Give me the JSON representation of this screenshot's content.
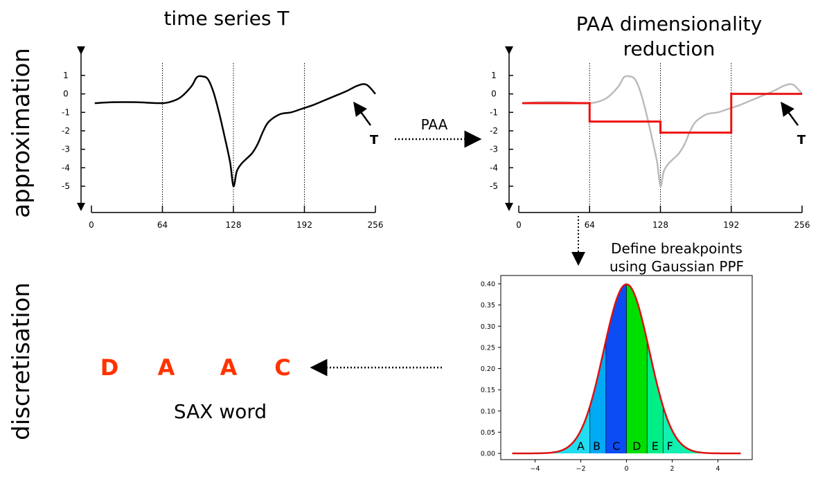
{
  "row_labels": {
    "approximation": "approximation",
    "discretisation": "discretisation"
  },
  "titles": {
    "left": "time series T",
    "right_line1": "PAA dimensionality",
    "right_line2": "reduction",
    "breakpoints_line1": "Define breakpoints",
    "breakpoints_line2": "using Gaussian PPF",
    "sax_word": "SAX word"
  },
  "arrow_labels": {
    "paa": "PAA"
  },
  "series_label": "T",
  "sax_letters": [
    "D",
    "A",
    "A",
    "C"
  ],
  "colors": {
    "series": "#000000",
    "faded_series": "#bbbbbb",
    "paa": "#ee1111",
    "sax": "#ff3300",
    "bin_A": "#22dcf0",
    "bin_B": "#00aaf5",
    "bin_C": "#0b4cf5",
    "bin_D": "#00e000",
    "bin_E": "#00ee88",
    "bin_F": "#11f0b0",
    "curve": "#dd1111"
  },
  "chart_data": [
    {
      "type": "line",
      "title": "time series T",
      "xticks": [
        "0",
        "64",
        "128",
        "192",
        "256"
      ],
      "yticks": [
        "1",
        "0",
        "-1",
        "-2",
        "-3",
        "-4",
        "-5"
      ],
      "xlim": [
        0,
        256
      ],
      "ylim": [
        -5,
        1
      ],
      "segment_boundaries": [
        64,
        128,
        192
      ],
      "series": [
        {
          "name": "T",
          "x": [
            3,
            20,
            40,
            60,
            70,
            80,
            90,
            95,
            100,
            105,
            110,
            115,
            120,
            125,
            128,
            131,
            135,
            140,
            145,
            150,
            155,
            160,
            170,
            180,
            190,
            200,
            210,
            220,
            230,
            240,
            248,
            256
          ],
          "y": [
            -0.5,
            -0.45,
            -0.45,
            -0.5,
            -0.45,
            -0.2,
            0.4,
            0.9,
            0.95,
            0.8,
            0.1,
            -1.0,
            -2.3,
            -3.7,
            -5.0,
            -4.2,
            -3.8,
            -3.5,
            -3.2,
            -2.7,
            -2.0,
            -1.5,
            -1.1,
            -1.0,
            -0.8,
            -0.6,
            -0.35,
            -0.1,
            0.15,
            0.45,
            0.5,
            0.0
          ]
        }
      ]
    },
    {
      "type": "line",
      "title": "PAA dimensionality reduction",
      "xticks": [
        "0",
        "64",
        "128",
        "192",
        "256"
      ],
      "yticks": [
        "1",
        "0",
        "-1",
        "-2",
        "-3",
        "-4",
        "-5"
      ],
      "xlim": [
        0,
        256
      ],
      "ylim": [
        -5,
        1
      ],
      "segment_boundaries": [
        64,
        128,
        192
      ],
      "paa_segments": [
        {
          "x0": 0,
          "x1": 64,
          "y": -0.5
        },
        {
          "x0": 64,
          "x1": 128,
          "y": -1.5
        },
        {
          "x0": 128,
          "x1": 192,
          "y": -2.1
        },
        {
          "x0": 192,
          "x1": 256,
          "y": 0.0
        }
      ]
    },
    {
      "type": "area",
      "title": "",
      "xticks": [
        "−4",
        "−2",
        "0",
        "2",
        "4"
      ],
      "xtick_values": [
        -4,
        -2,
        0,
        2,
        4
      ],
      "yticks": [
        "0.00",
        "0.05",
        "0.10",
        "0.15",
        "0.20",
        "0.25",
        "0.30",
        "0.35",
        "0.40"
      ],
      "ytick_values": [
        0,
        0.05,
        0.1,
        0.15,
        0.2,
        0.25,
        0.3,
        0.35,
        0.4
      ],
      "xlim": [
        -5,
        5
      ],
      "ylim": [
        0,
        0.42
      ],
      "curve": "standard normal pdf",
      "breakpoints": [
        -1.6,
        -0.9,
        0,
        0.9,
        1.6
      ],
      "bins": [
        {
          "label": "A",
          "from": -5,
          "to": -1.6,
          "label_x": -2.0
        },
        {
          "label": "B",
          "from": -1.6,
          "to": -0.9,
          "label_x": -1.3
        },
        {
          "label": "C",
          "from": -0.9,
          "to": 0,
          "label_x": -0.45
        },
        {
          "label": "D",
          "from": 0,
          "to": 0.9,
          "label_x": 0.45
        },
        {
          "label": "E",
          "from": 0.9,
          "to": 1.6,
          "label_x": 1.25
        },
        {
          "label": "F",
          "from": 1.6,
          "to": 5,
          "label_x": 1.9
        }
      ]
    }
  ]
}
